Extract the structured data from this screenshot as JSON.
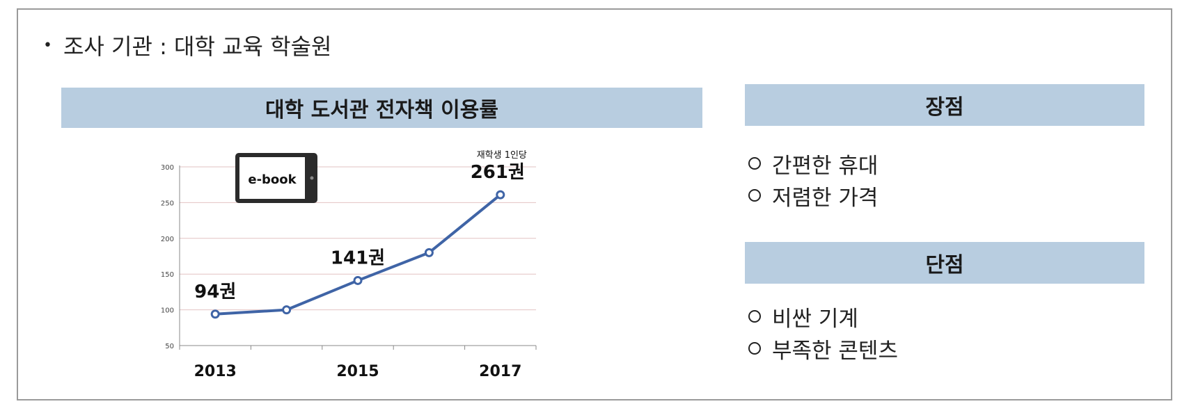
{
  "source": {
    "bullet": "•",
    "text": "조사 기관 : 대학 교육 학술원"
  },
  "chart_section": {
    "title": "대학 도서관 전자책 이용률"
  },
  "pros": {
    "title": "장점",
    "items": [
      "간편한 휴대",
      "저렴한 가격"
    ]
  },
  "cons": {
    "title": "단점",
    "items": [
      "비싼 기계",
      "부족한 콘텐츠"
    ]
  },
  "chart_data": {
    "type": "line",
    "x": [
      2013,
      2014,
      2015,
      2016,
      2017
    ],
    "x_tick_labels": [
      "2013",
      "",
      "2015",
      "",
      "2017"
    ],
    "series": [
      {
        "values": [
          94,
          100,
          141,
          180,
          261
        ]
      }
    ],
    "ylim": [
      50,
      300
    ],
    "yticks": [
      50,
      100,
      150,
      200,
      250,
      300
    ],
    "grid": true,
    "point_labels": [
      {
        "index": 0,
        "text": "94권"
      },
      {
        "index": 2,
        "text": "141권"
      },
      {
        "index": 4,
        "text": "261권"
      }
    ],
    "annotation": "재학생 1인당",
    "image_label": "e-book",
    "line_color": "#3f64a6"
  }
}
